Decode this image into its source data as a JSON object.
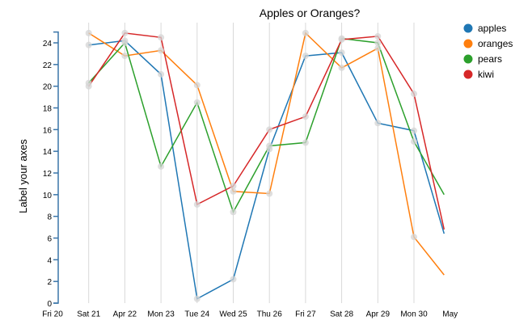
{
  "chart_data": {
    "type": "line",
    "title": "Apples or Oranges?",
    "ylabel": "Label your axes",
    "xlabel": "",
    "ylim": [
      0,
      25
    ],
    "yticks": [
      0,
      2,
      4,
      6,
      8,
      10,
      12,
      14,
      16,
      18,
      20,
      22,
      24
    ],
    "x_tick_labels": [
      "Fri 20",
      "Sat 21",
      "Apr 22",
      "Mon 23",
      "Tue 24",
      "Wed 25",
      "Thu 26",
      "Fri 27",
      "Sat 28",
      "Apr 29",
      "Mon 30",
      "May"
    ],
    "x_dates": [
      "2012-04-20",
      "2012-04-21",
      "2012-04-22",
      "2012-04-23",
      "2012-04-24",
      "2012-04-25",
      "2012-04-26",
      "2012-04-27",
      "2012-04-28",
      "2012-04-29",
      "2012-04-30",
      "2012-05-01"
    ],
    "grid": "vertical",
    "legend_position": "right",
    "series": [
      {
        "name": "apples",
        "color": "#1f77b4",
        "x": [
          "2012-04-21",
          "2012-04-22",
          "2012-04-23",
          "2012-04-24",
          "2012-04-25",
          "2012-04-26",
          "2012-04-27",
          "2012-04-28",
          "2012-04-29",
          "2012-04-30",
          "2012-04-30T20:00"
        ],
        "values": [
          23.8,
          24.2,
          21.1,
          0.4,
          2.2,
          14.2,
          22.8,
          23.1,
          16.6,
          15.9,
          6.4
        ]
      },
      {
        "name": "oranges",
        "color": "#ff7f0e",
        "x": [
          "2012-04-21",
          "2012-04-22",
          "2012-04-23",
          "2012-04-24",
          "2012-04-25",
          "2012-04-26",
          "2012-04-27",
          "2012-04-28",
          "2012-04-29",
          "2012-04-30",
          "2012-04-30T20:00"
        ],
        "values": [
          24.9,
          22.8,
          23.3,
          20.1,
          10.3,
          10.1,
          24.9,
          21.7,
          23.5,
          6.1,
          2.6
        ]
      },
      {
        "name": "pears",
        "color": "#2ca02c",
        "x": [
          "2012-04-21",
          "2012-04-22",
          "2012-04-23",
          "2012-04-24",
          "2012-04-25",
          "2012-04-26",
          "2012-04-27",
          "2012-04-28",
          "2012-04-29",
          "2012-04-30",
          "2012-04-30T20:00"
        ],
        "values": [
          20.3,
          24.0,
          12.6,
          18.5,
          8.4,
          14.5,
          14.8,
          24.4,
          24.0,
          14.9,
          10.0
        ]
      },
      {
        "name": "kiwi",
        "color": "#d62728",
        "x": [
          "2012-04-21",
          "2012-04-22",
          "2012-04-23",
          "2012-04-24",
          "2012-04-25",
          "2012-04-26",
          "2012-04-27",
          "2012-04-28",
          "2012-04-29",
          "2012-04-30",
          "2012-04-30T20:00"
        ],
        "values": [
          20.0,
          24.9,
          24.5,
          9.1,
          10.8,
          16.0,
          17.2,
          24.3,
          24.6,
          19.3,
          6.8
        ]
      }
    ]
  }
}
